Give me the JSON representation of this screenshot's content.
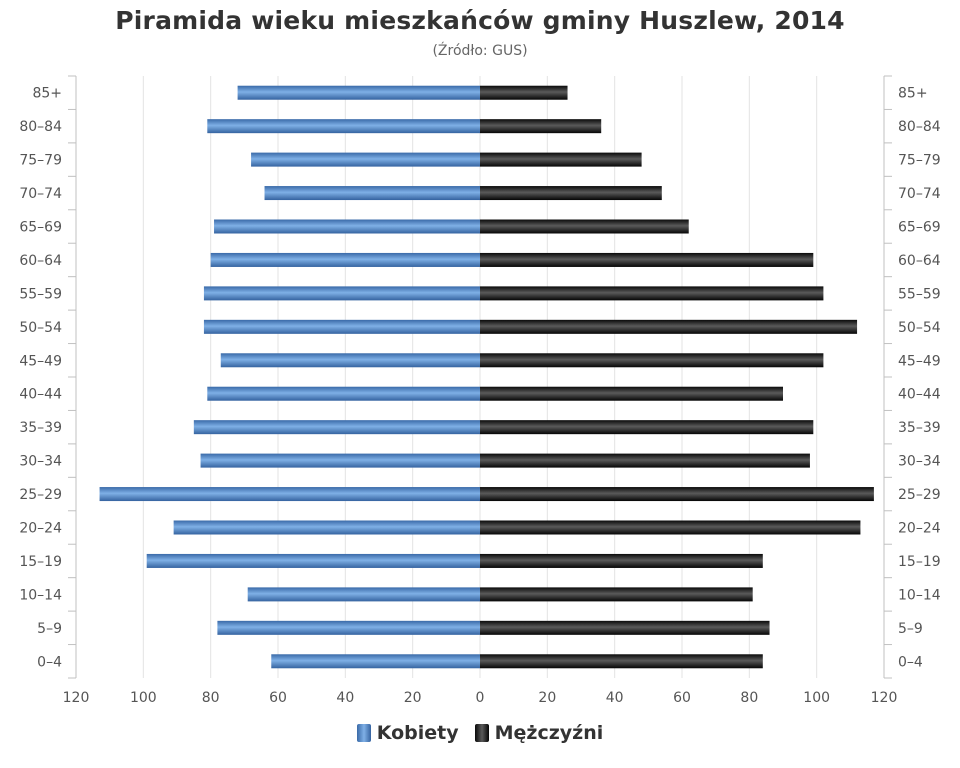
{
  "chart_data": {
    "type": "bar",
    "orientation": "horizontal-pyramid",
    "title": "Piramida wieku mieszkańców gminy Huszlew, 2014",
    "subtitle": "(Źródło: GUS)",
    "categories": [
      "85+",
      "80–84",
      "75–79",
      "70–74",
      "65–69",
      "60–64",
      "55–59",
      "50–54",
      "45–49",
      "40–44",
      "35–39",
      "30–34",
      "25–29",
      "20–24",
      "15–19",
      "10–14",
      "5–9",
      "0–4"
    ],
    "series": [
      {
        "name": "Kobiety",
        "color": "#4a7fbf",
        "values": [
          72,
          81,
          68,
          64,
          79,
          80,
          82,
          82,
          77,
          81,
          85,
          83,
          113,
          91,
          99,
          69,
          78,
          62
        ]
      },
      {
        "name": "Mężczyźni",
        "color": "#1a1a1a",
        "values": [
          26,
          36,
          48,
          54,
          62,
          99,
          102,
          112,
          102,
          90,
          99,
          98,
          117,
          113,
          84,
          81,
          86,
          84
        ]
      }
    ],
    "xlim": [
      -120,
      120
    ],
    "xticks": [
      "120",
      "100",
      "80",
      "60",
      "40",
      "20",
      "0",
      "20",
      "40",
      "60",
      "80",
      "100",
      "120"
    ],
    "grid": true,
    "legend_position": "bottom-center"
  }
}
